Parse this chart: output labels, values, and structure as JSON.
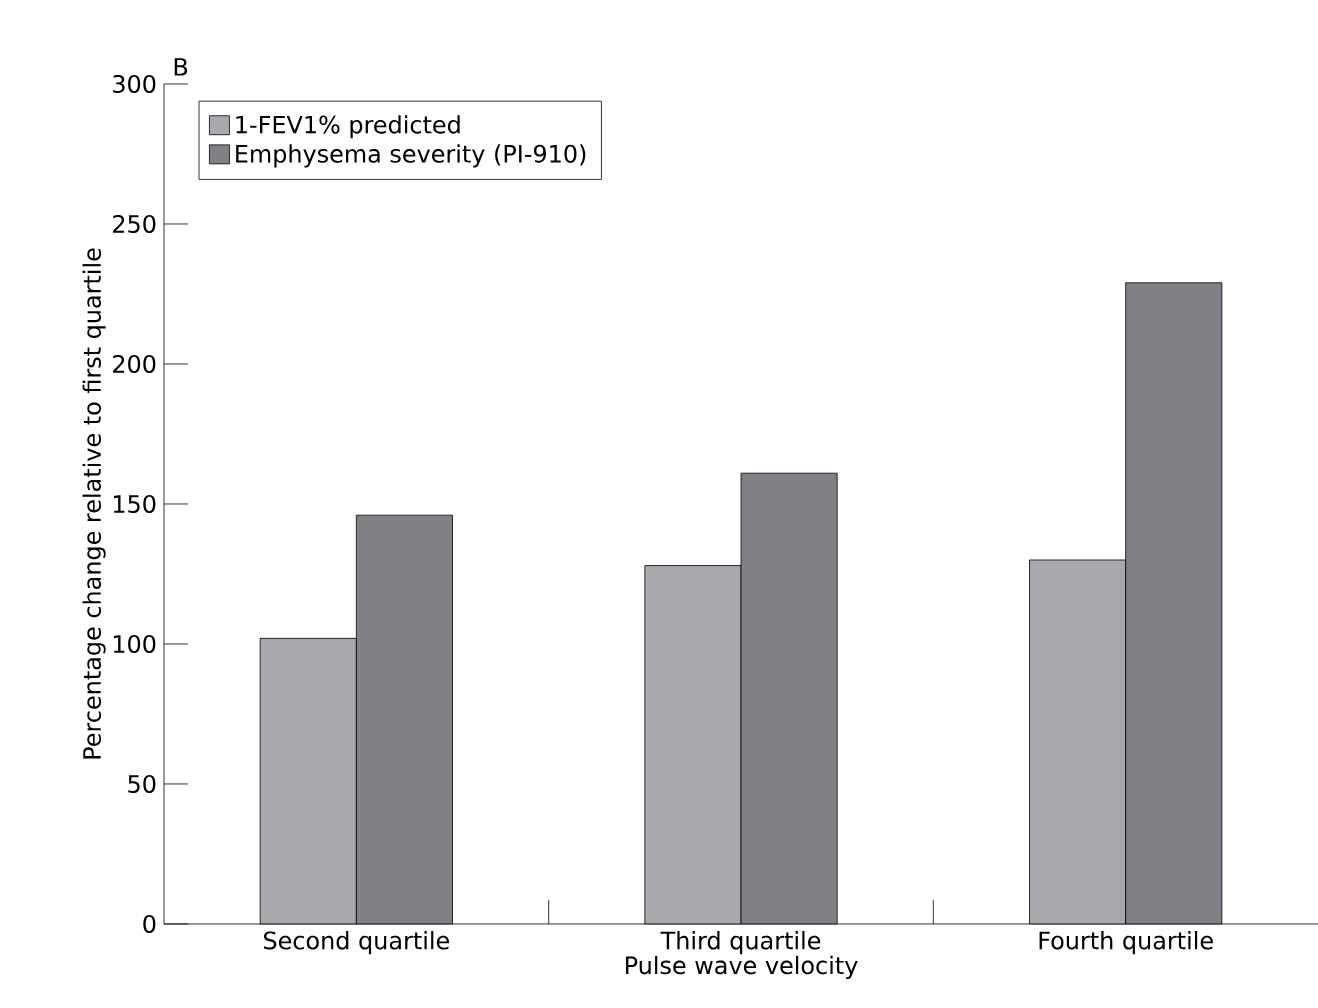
{
  "chart_data": {
    "type": "bar",
    "ylabel": "Percentage change relative to first quartile",
    "xlabel": "Pulse wave velocity",
    "categories": [
      "Second quartile",
      "Third quartile",
      "Fourth quartile"
    ],
    "series": [
      {
        "name": "1-FEV1% predicted",
        "color": "#a8a9ad",
        "values": [
          102,
          128,
          130
        ]
      },
      {
        "name": "Emphysema severity (PI-910)",
        "color": "#808185",
        "values": [
          146,
          161,
          229
        ]
      }
    ],
    "ylim": [
      0,
      300
    ],
    "yticks": [
      0,
      50,
      100,
      150,
      200,
      250,
      300
    ],
    "legend": "top left",
    "grid": false,
    "annotations": [
      "B"
    ]
  }
}
